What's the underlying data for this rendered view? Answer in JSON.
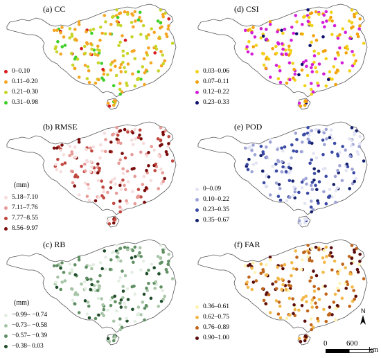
{
  "panels": [
    {
      "id": "cc",
      "title": "(a) CC",
      "unit": "",
      "legend": [
        {
          "label": "0–0.10",
          "color": "#d7191c"
        },
        {
          "label": "0.11–0.20",
          "color": "#f5a623"
        },
        {
          "label": "0.21–0.30",
          "color": "#c8d52a"
        },
        {
          "label": "0.31–0.98",
          "color": "#3fcf2a"
        }
      ],
      "weights": [
        0.04,
        0.45,
        0.36,
        0.15
      ]
    },
    {
      "id": "csi",
      "title": "(d) CSI",
      "unit": "",
      "legend": [
        {
          "label": "0.03–0.06",
          "color": "#f2d21b"
        },
        {
          "label": "0.07–0.11",
          "color": "#f2a20c"
        },
        {
          "label": "0.12–0.22",
          "color": "#d21fd6"
        },
        {
          "label": "0.23–0.33",
          "color": "#101070"
        }
      ],
      "weights": [
        0.35,
        0.25,
        0.32,
        0.08
      ]
    },
    {
      "id": "rmse",
      "title": "(b) RMSE",
      "unit": "(mm)",
      "legend": [
        {
          "label": "5.18–7.10",
          "color": "#f7dcdc"
        },
        {
          "label": "7.11–7.76",
          "color": "#e79a96"
        },
        {
          "label": "7.77–8.55",
          "color": "#c0473f"
        },
        {
          "label": "8.56–9.97",
          "color": "#7a0c0c"
        }
      ],
      "weights": [
        0.3,
        0.25,
        0.25,
        0.2
      ]
    },
    {
      "id": "pod",
      "title": "(e) POD",
      "unit": "",
      "legend": [
        {
          "label": "0–0.09",
          "color": "#e3e4f3"
        },
        {
          "label": "0.10–0.22",
          "color": "#9ea3d6"
        },
        {
          "label": "0.23–0.35",
          "color": "#3a4aa5"
        },
        {
          "label": "0.35–0.67",
          "color": "#14206e"
        }
      ],
      "weights": [
        0.3,
        0.25,
        0.3,
        0.15
      ]
    },
    {
      "id": "rb",
      "title": "(c) RB",
      "unit": "(mm)",
      "legend": [
        {
          "label": "−0.99– −0.74",
          "color": "#e3eee3"
        },
        {
          "label": "−0.73– −0.58",
          "color": "#a8c5a8"
        },
        {
          "label": "−0.57– −0.39",
          "color": "#5f8f63"
        },
        {
          "label": "−0.38– 0.03",
          "color": "#1f4d2a"
        }
      ],
      "weights": [
        0.25,
        0.3,
        0.3,
        0.15
      ]
    },
    {
      "id": "far",
      "title": "(f) FAR",
      "unit": "",
      "legend": [
        {
          "label": "0.36–0.61",
          "color": "#fff3b0"
        },
        {
          "label": "0.62–0.75",
          "color": "#f2b94a"
        },
        {
          "label": "0.76–0.89",
          "color": "#c0651a"
        },
        {
          "label": "0.90–1.00",
          "color": "#5a0c0c"
        }
      ],
      "weights": [
        0.15,
        0.3,
        0.3,
        0.25
      ]
    }
  ],
  "north_label": "N",
  "scale": {
    "left": "0",
    "right": "600",
    "unit": "km"
  }
}
